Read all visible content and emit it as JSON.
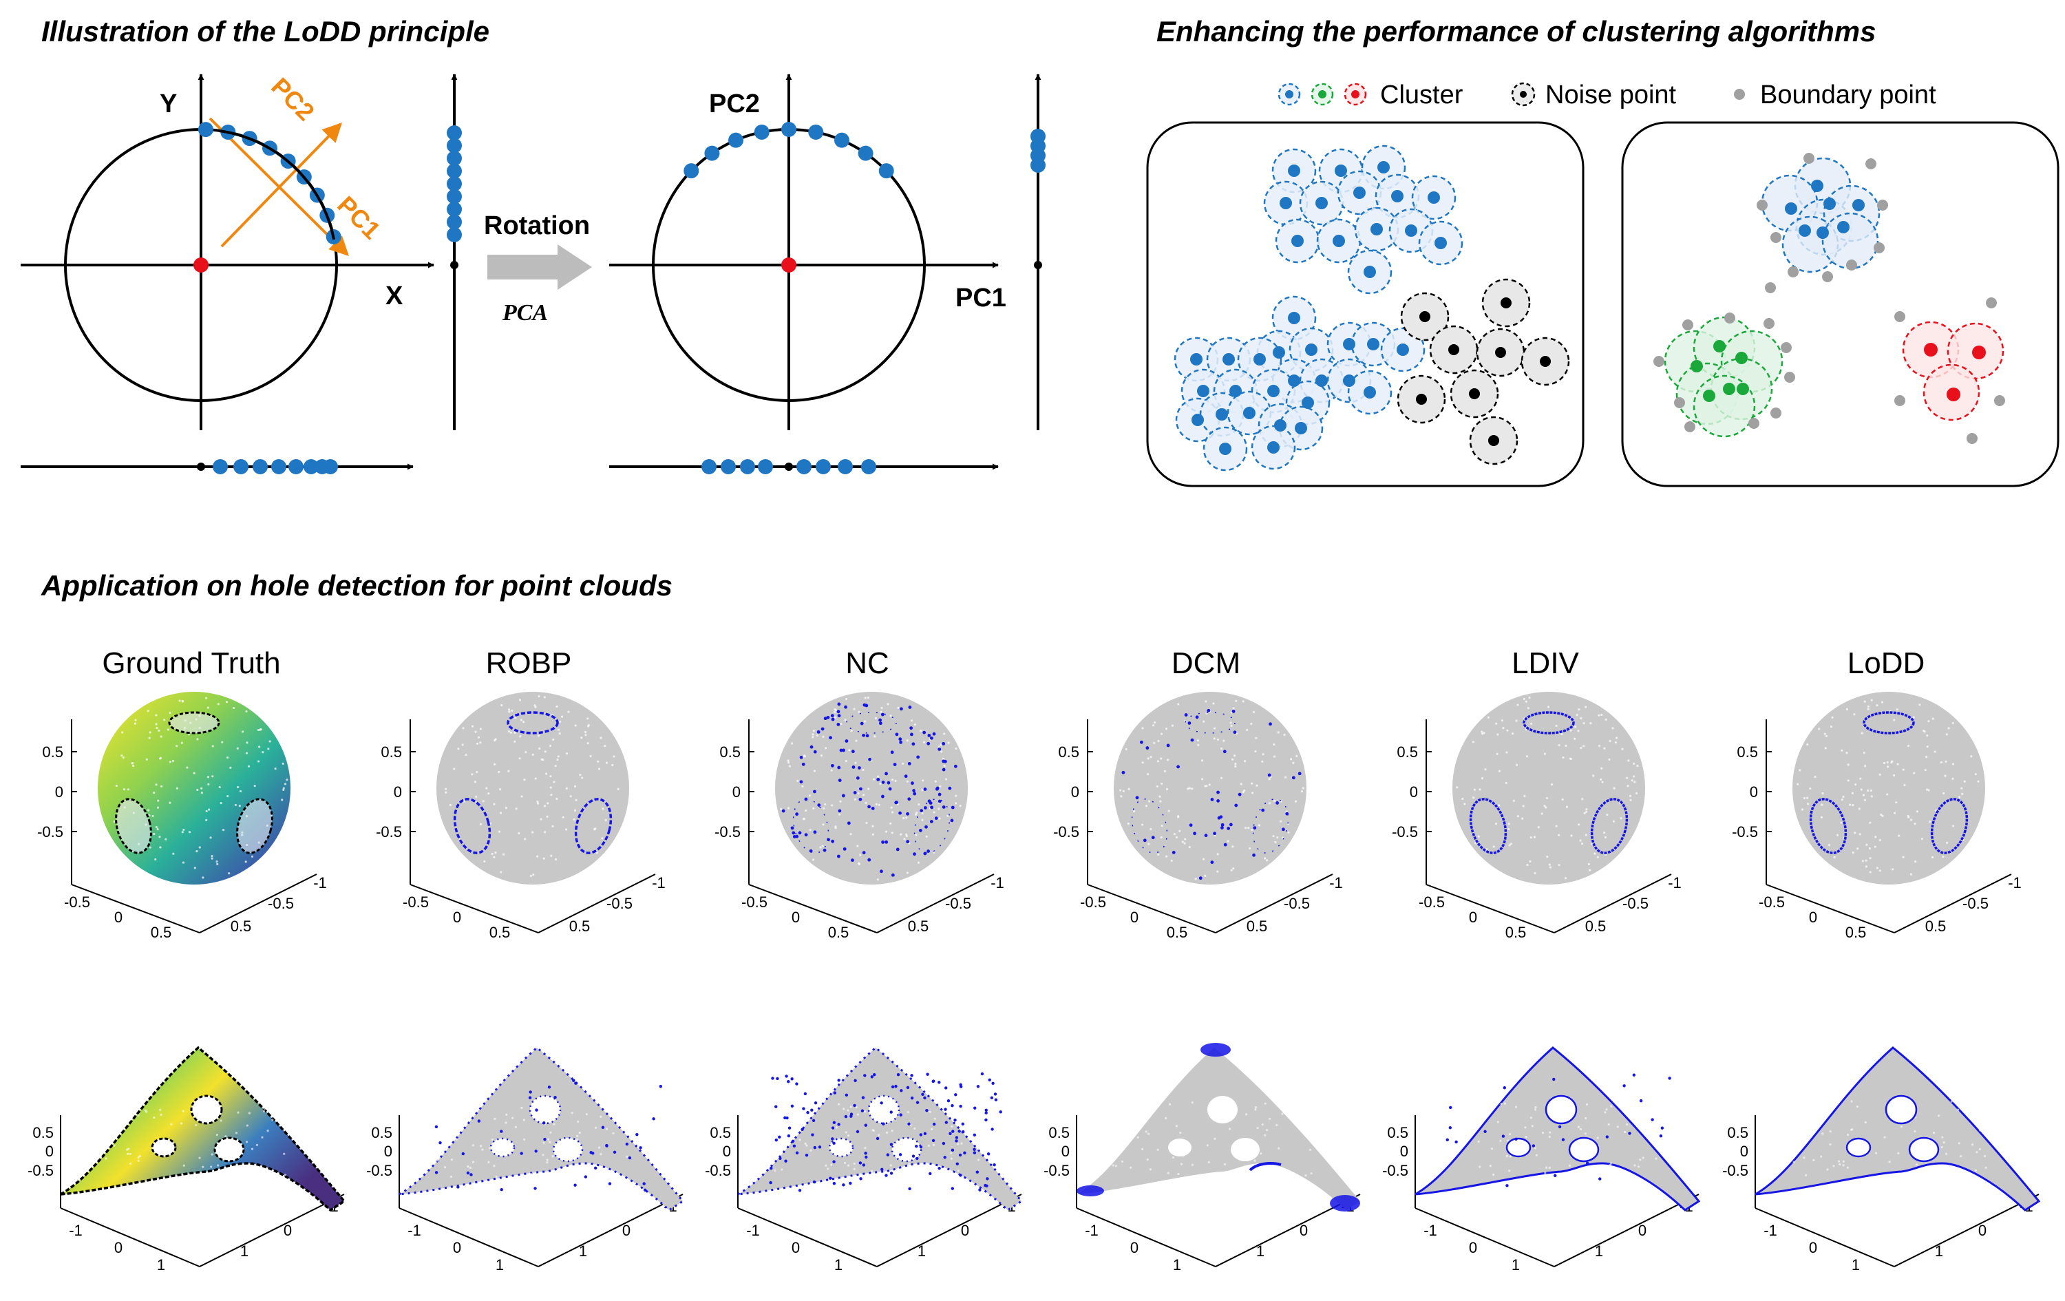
{
  "titles": {
    "lodd_principle": "Illustration of the LoDD principle",
    "clustering": "Enhancing the performance of clustering algorithms",
    "hole_detection": "Application on hole detection for point clouds"
  },
  "principle": {
    "axis_y": "Y",
    "axis_x": "X",
    "pc1": "PC1",
    "pc2": "PC2",
    "rotation": "Rotation",
    "pca": "PCA",
    "pc2_axis": "PC2",
    "pc1_axis": "PC1"
  },
  "legend": {
    "cluster": "Cluster",
    "noise": "Noise point",
    "boundary": "Boundary point"
  },
  "methods": [
    "Ground Truth",
    "ROBP",
    "NC",
    "DCM",
    "LDIV",
    "LoDD"
  ],
  "sphere_ticks": {
    "z": [
      "0.5",
      "0",
      "-0.5"
    ],
    "x": [
      "-0.5",
      "0",
      "0.5"
    ],
    "y": [
      "0.5",
      "-0.5",
      "-1"
    ]
  },
  "sheet_ticks": {
    "z": [
      "0.5",
      "0",
      "-0.5"
    ],
    "x": [
      "-1",
      "0",
      "1"
    ],
    "y": [
      "1",
      "0",
      "-1"
    ]
  },
  "colors": {
    "blue_point": "#1f77c4",
    "orange": "#f0870f",
    "red": "#e8101a",
    "green": "#1aa83a",
    "gray_point": "#a0a0a0",
    "detect_blue": "#1515e6",
    "cloud_gray": "#c8c8c8"
  }
}
